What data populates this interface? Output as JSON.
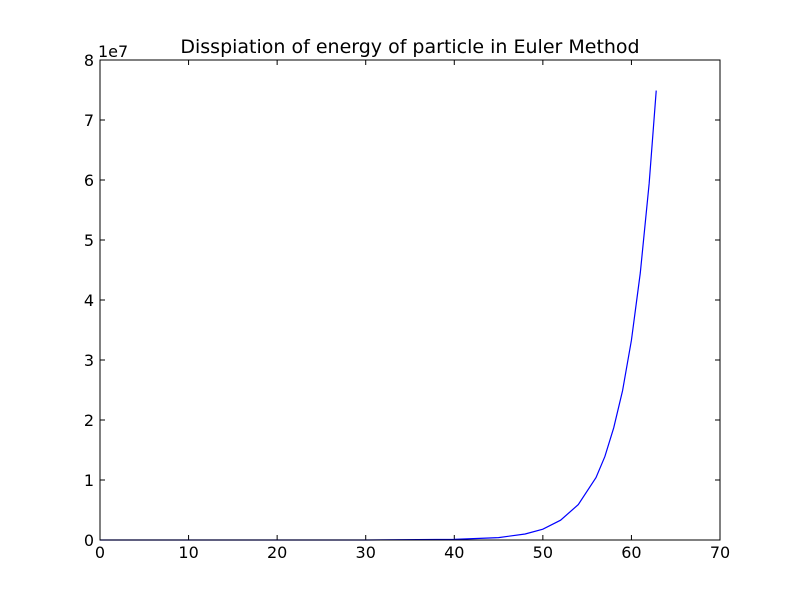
{
  "chart_data": {
    "type": "line",
    "title": "Disspiation of energy of particle in Euler Method",
    "y_offset_label": "1e7",
    "x": [
      0,
      10,
      20,
      30,
      40,
      45,
      48,
      50,
      52,
      54,
      56,
      57,
      58,
      59,
      60,
      61,
      62,
      62.8
    ],
    "series": [
      {
        "color": "#0000ff",
        "values": [
          0,
          0,
          0,
          0,
          0.01,
          0.04,
          0.1,
          0.18,
          0.33,
          0.59,
          1.04,
          1.39,
          1.87,
          2.49,
          3.33,
          4.45,
          5.94,
          7.49
        ]
      }
    ],
    "xlim": [
      0,
      70
    ],
    "xticks": [
      0,
      10,
      20,
      30,
      40,
      50,
      60,
      70
    ],
    "ylim": [
      0,
      8
    ],
    "yticks": [
      0,
      1,
      2,
      3,
      4,
      5,
      6,
      7,
      8
    ],
    "grid": false
  }
}
